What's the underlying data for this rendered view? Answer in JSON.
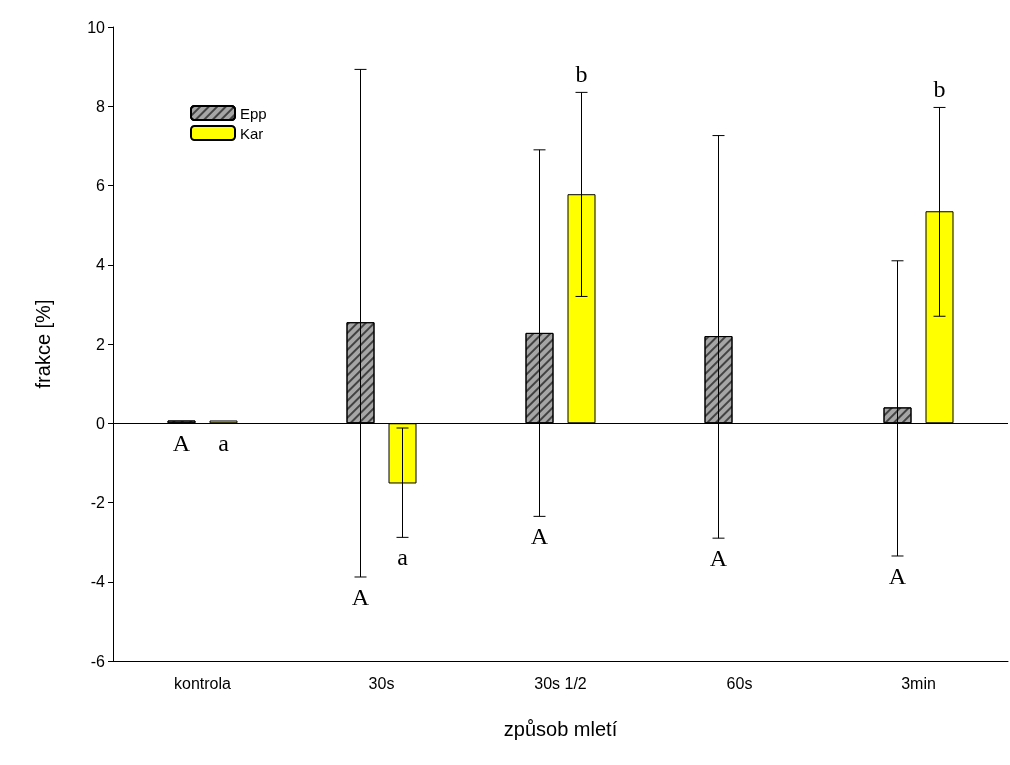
{
  "chart_data": {
    "type": "bar",
    "xlabel": "způsob mletí",
    "ylabel": "frakce [%]",
    "categories": [
      "kontrola",
      "30s",
      "30s 1/2",
      "60s",
      "3min"
    ],
    "series": [
      {
        "name": "Epp",
        "color": "#a6a6a6",
        "values": [
          0.07,
          2.55,
          2.28,
          2.2,
          0.4
        ],
        "errors": [
          null,
          [
            -3.88,
            8.93
          ],
          [
            -2.35,
            6.9
          ],
          [
            -2.9,
            7.26
          ],
          [
            -3.35,
            4.1
          ]
        ]
      },
      {
        "name": "Kar",
        "color": "#ffff00",
        "values": [
          0.07,
          -1.52,
          5.78,
          null,
          5.35
        ],
        "errors": [
          null,
          [
            -2.88,
            -0.12
          ],
          [
            3.2,
            8.35
          ],
          null,
          [
            2.7,
            7.97
          ]
        ]
      }
    ],
    "ylim": [
      -6,
      10
    ],
    "yticks": [
      -6,
      -4,
      -2,
      0,
      2,
      4,
      6,
      8,
      10
    ],
    "grid": false,
    "legend": "top left",
    "ref_lines": [
      {
        "axis": "y",
        "value": 0
      }
    ],
    "annotations": [
      "A",
      "a",
      "A",
      "a",
      "A",
      "b",
      "A",
      "A",
      "b"
    ]
  }
}
